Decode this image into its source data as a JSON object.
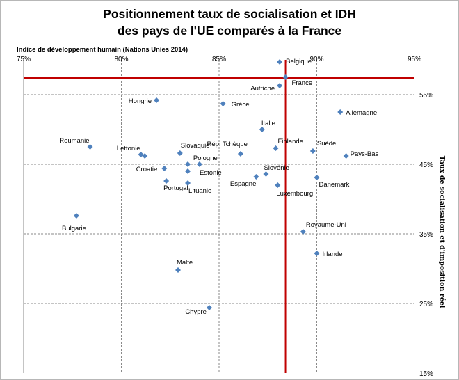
{
  "chart_data": {
    "type": "scatter",
    "title_line1": "Positionnement taux de socialisation et IDH",
    "title_line2": "des pays de l'UE comparés à la France",
    "xlabel": "Indice de développement humain (Nations Unies 2014)",
    "ylabel": "Taux de socialisation  et d'imposition  réel",
    "x_ticks": [
      {
        "value": 75,
        "label": "75%"
      },
      {
        "value": 80,
        "label": "80%"
      },
      {
        "value": 85,
        "label": "85%"
      },
      {
        "value": 90,
        "label": "90%"
      },
      {
        "value": 95,
        "label": "95%"
      }
    ],
    "y_ticks": [
      {
        "value": 55,
        "label": "55%"
      },
      {
        "value": 45,
        "label": "45%"
      },
      {
        "value": 35,
        "label": "35%"
      },
      {
        "value": 25,
        "label": "25%"
      },
      {
        "value": 15,
        "label": "15%"
      }
    ],
    "xlim": [
      75,
      95
    ],
    "ylim": [
      15,
      60
    ],
    "grid": true,
    "marker_color": "#4f81bd",
    "reference_line_color": "#c00000",
    "reference": {
      "name": "France",
      "x": 88.4,
      "y": 57.5
    },
    "points": [
      {
        "name": "Belgique",
        "x": 88.1,
        "y": 59.7,
        "anchor": "start",
        "dx": 9,
        "dy": 2
      },
      {
        "name": "France",
        "x": 88.4,
        "y": 57.5,
        "anchor": "start",
        "dx": 9,
        "dy": 11
      },
      {
        "name": "Autriche",
        "x": 88.1,
        "y": 56.3,
        "anchor": "end",
        "dx": -7,
        "dy": 7
      },
      {
        "name": "Hongrie",
        "x": 81.8,
        "y": 54.2,
        "anchor": "end",
        "dx": -7,
        "dy": 4
      },
      {
        "name": "Grèce",
        "x": 85.2,
        "y": 53.7,
        "anchor": "start",
        "dx": 12,
        "dy": 4
      },
      {
        "name": "Allemagne",
        "x": 91.2,
        "y": 52.5,
        "anchor": "start",
        "dx": 8,
        "dy": 4
      },
      {
        "name": "Italie",
        "x": 87.2,
        "y": 50.0,
        "anchor": "start",
        "dx": -1,
        "dy": -6
      },
      {
        "name": "Finlande",
        "x": 87.9,
        "y": 47.3,
        "anchor": "start",
        "dx": 3,
        "dy": -7
      },
      {
        "name": "Suède",
        "x": 89.8,
        "y": 46.9,
        "anchor": "start",
        "dx": 6,
        "dy": -8
      },
      {
        "name": "Roumanie",
        "x": 78.4,
        "y": 47.5,
        "anchor": "end",
        "dx": -1,
        "dy": -6
      },
      {
        "name": "Lettonie",
        "x": 81.0,
        "y": 46.4,
        "anchor": "end",
        "dx": -1,
        "dy": -6
      },
      {
        "name": "Lettonie-2",
        "x": 81.2,
        "y": 46.2,
        "anchor": "none"
      },
      {
        "name": "Slovaquie",
        "x": 83.0,
        "y": 46.6,
        "anchor": "start",
        "dx": 1,
        "dy": -8
      },
      {
        "name": "Rép. Tchèque",
        "x": 86.1,
        "y": 46.5,
        "anchor": "end",
        "dx": 10,
        "dy": -11
      },
      {
        "name": "Pays-Bas",
        "x": 91.5,
        "y": 46.2,
        "anchor": "start",
        "dx": 6,
        "dy": 0
      },
      {
        "name": "Pologne",
        "x": 84.0,
        "y": 45.0,
        "anchor": "start",
        "dx": -9,
        "dy": -6
      },
      {
        "name": "Pologne-2",
        "x": 83.4,
        "y": 45.0,
        "anchor": "none"
      },
      {
        "name": "Croatie",
        "x": 82.2,
        "y": 44.4,
        "anchor": "end",
        "dx": -10,
        "dy": 4
      },
      {
        "name": "Estonie",
        "x": 83.4,
        "y": 44.0,
        "anchor": "start",
        "dx": 17,
        "dy": 5
      },
      {
        "name": "Slovénie",
        "x": 87.4,
        "y": 43.6,
        "anchor": "start",
        "dx": -3,
        "dy": -6
      },
      {
        "name": "Espagne",
        "x": 86.9,
        "y": 43.2,
        "anchor": "end",
        "dx": 0,
        "dy": 13
      },
      {
        "name": "Portugal",
        "x": 82.3,
        "y": 42.6,
        "anchor": "start",
        "dx": -4,
        "dy": 13
      },
      {
        "name": "Lituanie",
        "x": 83.4,
        "y": 42.3,
        "anchor": "start",
        "dx": 1,
        "dy": 14
      },
      {
        "name": "Danemark",
        "x": 90.0,
        "y": 43.1,
        "anchor": "start",
        "dx": 3,
        "dy": 13
      },
      {
        "name": "Luxembourg",
        "x": 88.0,
        "y": 42.0,
        "anchor": "start",
        "dx": -2,
        "dy": 15
      },
      {
        "name": "Bulgarie",
        "x": 77.7,
        "y": 37.6,
        "anchor": "end",
        "dx": 14,
        "dy": 21
      },
      {
        "name": "Royaume-Uni",
        "x": 89.3,
        "y": 35.3,
        "anchor": "start",
        "dx": 4,
        "dy": -7
      },
      {
        "name": "Irlande",
        "x": 90.0,
        "y": 32.2,
        "anchor": "start",
        "dx": 8,
        "dy": 4
      },
      {
        "name": "Malte",
        "x": 82.9,
        "y": 29.8,
        "anchor": "start",
        "dx": -2,
        "dy": -8
      },
      {
        "name": "Chypre",
        "x": 84.5,
        "y": 24.4,
        "anchor": "end",
        "dx": -4,
        "dy": 9
      }
    ]
  }
}
